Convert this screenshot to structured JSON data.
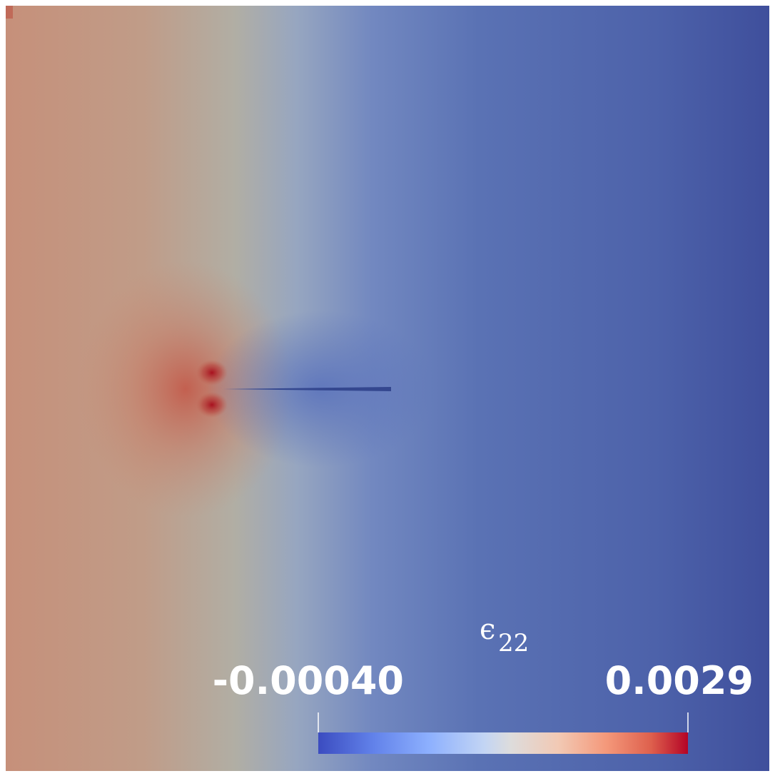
{
  "colorbar": {
    "title": "ϵ",
    "title_subscript": "22",
    "min_label": "-0.00040",
    "max_label": "0.0029"
  }
}
